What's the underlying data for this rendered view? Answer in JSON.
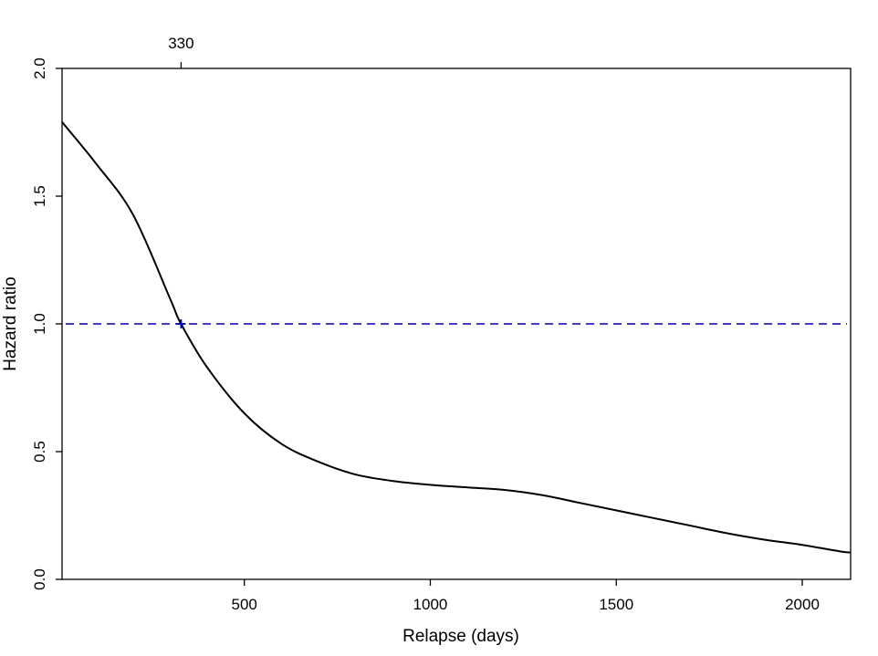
{
  "chart_data": {
    "type": "line",
    "xlabel": "Relapse (days)",
    "ylabel": "Hazard ratio",
    "xlim": [
      10,
      2130
    ],
    "ylim": [
      0,
      2.0
    ],
    "x_ticks": [
      "500",
      "1000",
      "1500",
      "2000"
    ],
    "y_ticks": [
      "0.0",
      "0.5",
      "1.0",
      "1.5",
      "2.0"
    ],
    "top_axis_ticks": [
      "330"
    ],
    "grid": false,
    "reference_line": {
      "y": 1.0,
      "style": "dashed",
      "color": "#0000aa"
    },
    "crossing_point": {
      "x": 330,
      "y": 1.0,
      "marker": "+",
      "color": "#0000aa"
    },
    "series": [
      {
        "color": "#000000",
        "x": [
          10,
          100,
          200,
          300,
          330,
          400,
          500,
          600,
          700,
          800,
          900,
          1000,
          1100,
          1200,
          1300,
          1400,
          1500,
          1600,
          1700,
          1800,
          1900,
          2000,
          2100,
          2130
        ],
        "y": [
          1.79,
          1.63,
          1.43,
          1.1,
          1.0,
          0.83,
          0.65,
          0.53,
          0.46,
          0.41,
          0.385,
          0.37,
          0.36,
          0.35,
          0.33,
          0.3,
          0.27,
          0.24,
          0.21,
          0.18,
          0.155,
          0.135,
          0.11,
          0.105
        ]
      }
    ]
  }
}
